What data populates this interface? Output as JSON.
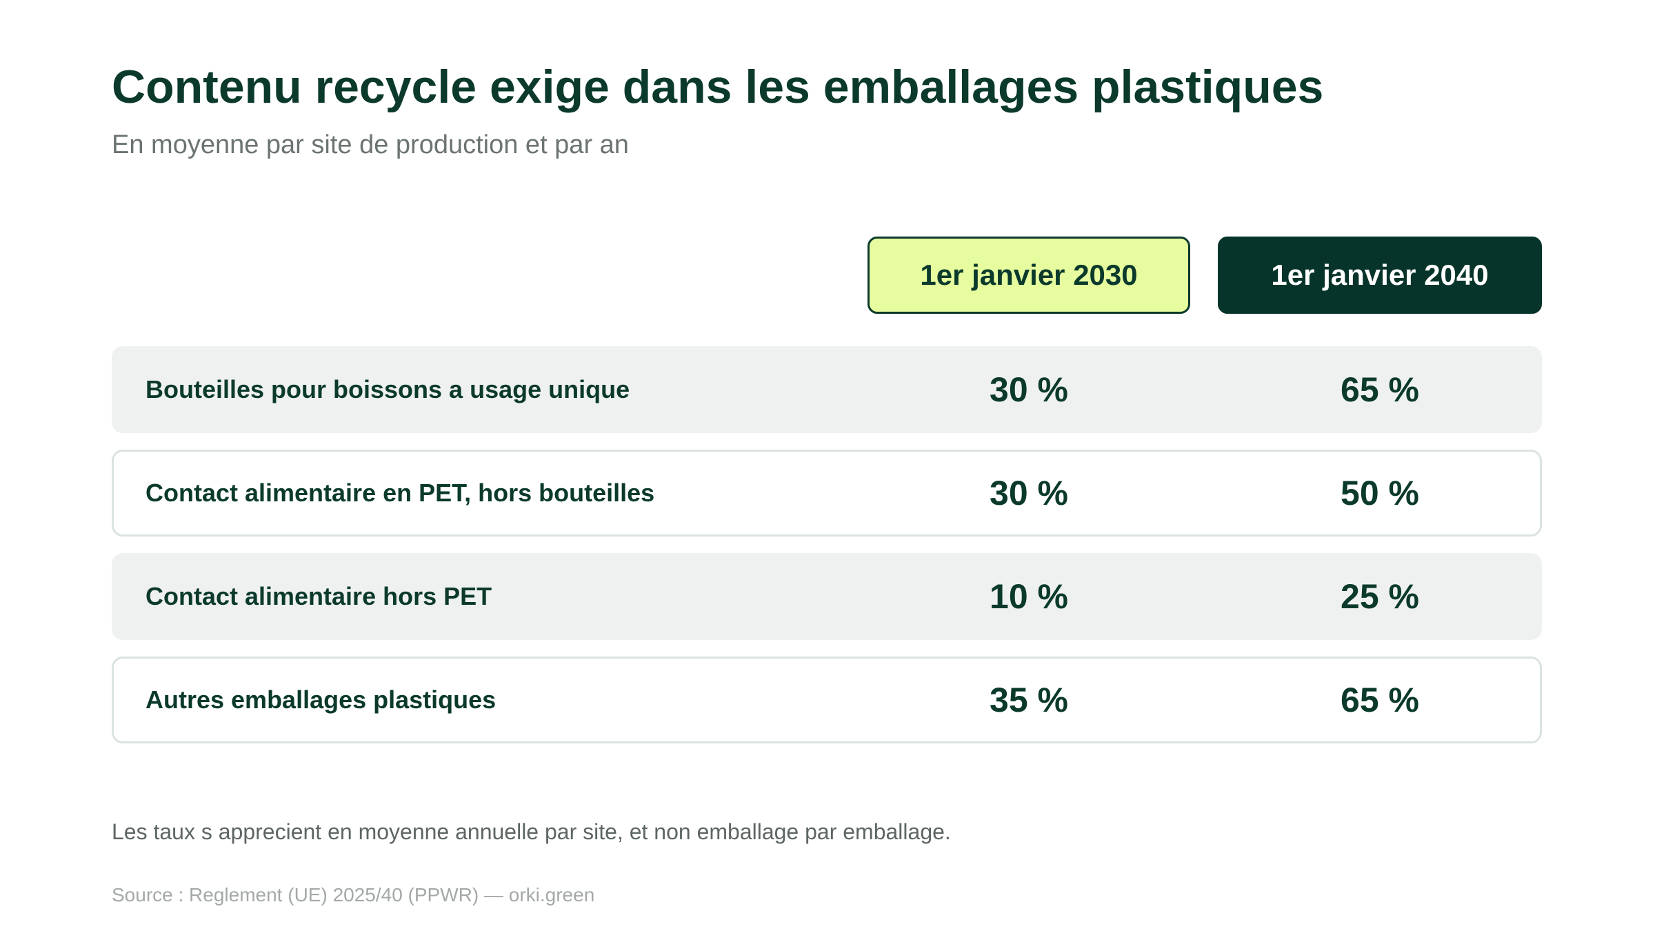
{
  "header": {
    "title": "Contenu recycle exige dans les emballages plastiques",
    "subtitle": "En moyenne par site de production et par an"
  },
  "columns": [
    {
      "label": "1er janvier 2030"
    },
    {
      "label": "1er janvier 2040"
    }
  ],
  "rows": [
    {
      "label": "Bouteilles pour boissons a usage unique",
      "v2030": "30 %",
      "v2040": "65 %"
    },
    {
      "label": "Contact alimentaire en PET, hors bouteilles",
      "v2030": "30 %",
      "v2040": "50 %"
    },
    {
      "label": "Contact alimentaire hors PET",
      "v2030": "10 %",
      "v2040": "25 %"
    },
    {
      "label": "Autres emballages plastiques",
      "v2030": "35 %",
      "v2040": "65 %"
    }
  ],
  "footer": {
    "note": "Les taux s apprecient en moyenne annuelle par site, et non emballage par emballage.",
    "source": "Source : Reglement (UE) 2025/40 (PPWR) — orki.green"
  },
  "colors": {
    "primary_dark": "#0b3a2c",
    "header_2030_bg": "#e6fc9f",
    "header_2040_bg": "#07342a",
    "row_shaded_bg": "#eff1f0",
    "row_outline": "#dbe3df",
    "muted_text": "#6b7470",
    "source_text": "#a3a9a6"
  }
}
